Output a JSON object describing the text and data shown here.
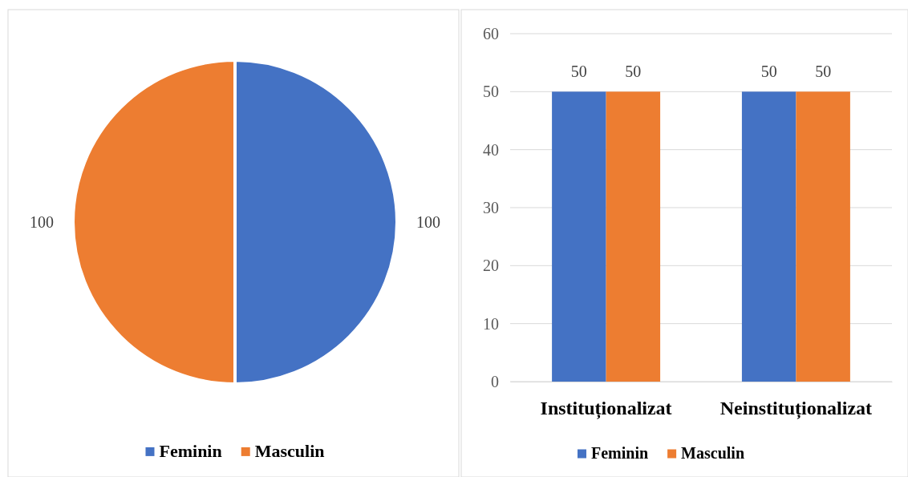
{
  "chart_data": [
    {
      "type": "pie",
      "categories": [
        "Feminin",
        "Masculin"
      ],
      "values": [
        100,
        100
      ],
      "colors": [
        "#4472c4",
        "#ed7d31"
      ],
      "data_labels": true,
      "legend": "bottom"
    },
    {
      "type": "bar",
      "categories": [
        "Instituționalizat",
        "Neinstituționalizat"
      ],
      "series": [
        {
          "name": "Feminin",
          "color": "#4472c4",
          "values": [
            50,
            50
          ]
        },
        {
          "name": "Masculin",
          "color": "#ed7d31",
          "values": [
            50,
            50
          ]
        }
      ],
      "ylim": [
        0,
        60
      ],
      "yticks": [
        0,
        10,
        20,
        30,
        40,
        50,
        60
      ],
      "grid": "y",
      "data_labels": true,
      "legend": "bottom"
    }
  ]
}
